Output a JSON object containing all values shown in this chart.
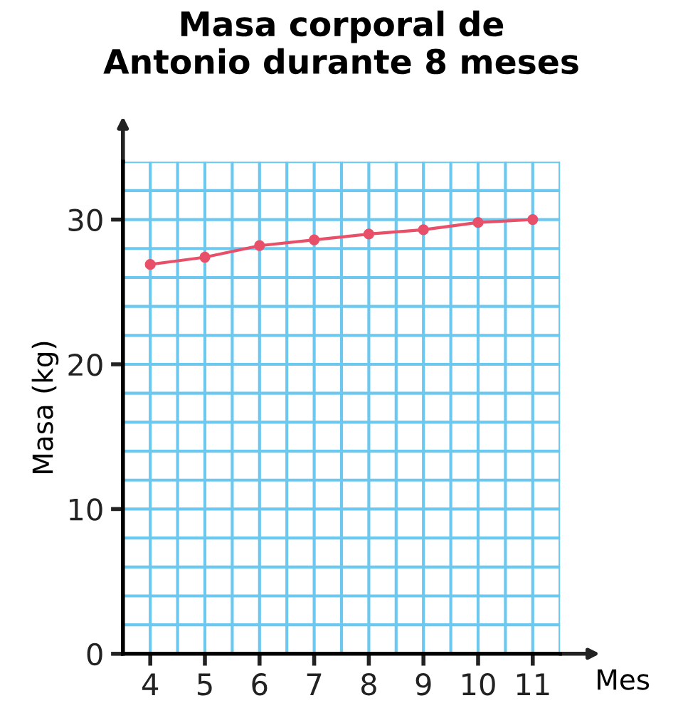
{
  "chart_data": {
    "type": "line",
    "title": "Masa corporal de\nAntonio durante 8 meses",
    "xlabel": "Mes",
    "ylabel": "Masa (kg)",
    "x": [
      4,
      5,
      6,
      7,
      8,
      9,
      10,
      11
    ],
    "series": [
      {
        "color": "#e8506a",
        "values": [
          26.9,
          27.4,
          28.2,
          28.6,
          29.0,
          29.3,
          29.8,
          30.0
        ]
      }
    ],
    "xlim": [
      3.5,
      11.5
    ],
    "xticks": [
      4,
      5,
      6,
      7,
      8,
      9,
      10,
      11
    ],
    "ylim": [
      0,
      34
    ],
    "yticks": [
      0,
      10,
      20,
      30
    ],
    "grid": true,
    "marker": "circle",
    "line_style": "solid",
    "legend": false
  }
}
